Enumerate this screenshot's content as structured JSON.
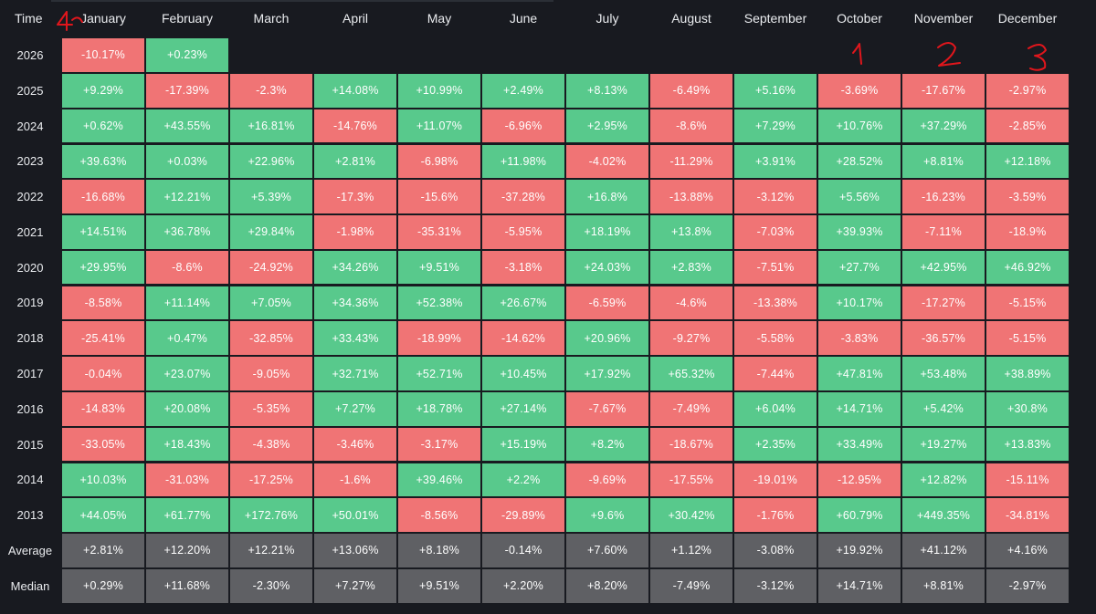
{
  "chart_data": {
    "type": "table",
    "corner_label": "Time",
    "months": [
      "January",
      "February",
      "March",
      "April",
      "May",
      "June",
      "July",
      "August",
      "September",
      "October",
      "November",
      "December"
    ],
    "rows": [
      {
        "year": "2026",
        "values": [
          "-10.17%",
          "+0.23%",
          "",
          "",
          "",
          "",
          "",
          "",
          "",
          "",
          "",
          ""
        ]
      },
      {
        "year": "2025",
        "values": [
          "+9.29%",
          "-17.39%",
          "-2.3%",
          "+14.08%",
          "+10.99%",
          "+2.49%",
          "+8.13%",
          "-6.49%",
          "+5.16%",
          "-3.69%",
          "-17.67%",
          "-2.97%"
        ]
      },
      {
        "year": "2024",
        "values": [
          "+0.62%",
          "+43.55%",
          "+16.81%",
          "-14.76%",
          "+11.07%",
          "-6.96%",
          "+2.95%",
          "-8.6%",
          "+7.29%",
          "+10.76%",
          "+37.29%",
          "-2.85%"
        ]
      },
      {
        "year": "2023",
        "values": [
          "+39.63%",
          "+0.03%",
          "+22.96%",
          "+2.81%",
          "-6.98%",
          "+11.98%",
          "-4.02%",
          "-11.29%",
          "+3.91%",
          "+28.52%",
          "+8.81%",
          "+12.18%"
        ]
      },
      {
        "year": "2022",
        "values": [
          "-16.68%",
          "+12.21%",
          "+5.39%",
          "-17.3%",
          "-15.6%",
          "-37.28%",
          "+16.8%",
          "-13.88%",
          "-3.12%",
          "+5.56%",
          "-16.23%",
          "-3.59%"
        ]
      },
      {
        "year": "2021",
        "values": [
          "+14.51%",
          "+36.78%",
          "+29.84%",
          "-1.98%",
          "-35.31%",
          "-5.95%",
          "+18.19%",
          "+13.8%",
          "-7.03%",
          "+39.93%",
          "-7.11%",
          "-18.9%"
        ]
      },
      {
        "year": "2020",
        "values": [
          "+29.95%",
          "-8.6%",
          "-24.92%",
          "+34.26%",
          "+9.51%",
          "-3.18%",
          "+24.03%",
          "+2.83%",
          "-7.51%",
          "+27.7%",
          "+42.95%",
          "+46.92%"
        ]
      },
      {
        "year": "2019",
        "values": [
          "-8.58%",
          "+11.14%",
          "+7.05%",
          "+34.36%",
          "+52.38%",
          "+26.67%",
          "-6.59%",
          "-4.6%",
          "-13.38%",
          "+10.17%",
          "-17.27%",
          "-5.15%"
        ]
      },
      {
        "year": "2018",
        "values": [
          "-25.41%",
          "+0.47%",
          "-32.85%",
          "+33.43%",
          "-18.99%",
          "-14.62%",
          "+20.96%",
          "-9.27%",
          "-5.58%",
          "-3.83%",
          "-36.57%",
          "-5.15%"
        ]
      },
      {
        "year": "2017",
        "values": [
          "-0.04%",
          "+23.07%",
          "-9.05%",
          "+32.71%",
          "+52.71%",
          "+10.45%",
          "+17.92%",
          "+65.32%",
          "-7.44%",
          "+47.81%",
          "+53.48%",
          "+38.89%"
        ]
      },
      {
        "year": "2016",
        "values": [
          "-14.83%",
          "+20.08%",
          "-5.35%",
          "+7.27%",
          "+18.78%",
          "+27.14%",
          "-7.67%",
          "-7.49%",
          "+6.04%",
          "+14.71%",
          "+5.42%",
          "+30.8%"
        ]
      },
      {
        "year": "2015",
        "values": [
          "-33.05%",
          "+18.43%",
          "-4.38%",
          "-3.46%",
          "-3.17%",
          "+15.19%",
          "+8.2%",
          "-18.67%",
          "+2.35%",
          "+33.49%",
          "+19.27%",
          "+13.83%"
        ]
      },
      {
        "year": "2014",
        "values": [
          "+10.03%",
          "-31.03%",
          "-17.25%",
          "-1.6%",
          "+39.46%",
          "+2.2%",
          "-9.69%",
          "-17.55%",
          "-19.01%",
          "-12.95%",
          "+12.82%",
          "-15.11%"
        ]
      },
      {
        "year": "2013",
        "values": [
          "+44.05%",
          "+61.77%",
          "+172.76%",
          "+50.01%",
          "-8.56%",
          "-29.89%",
          "+9.6%",
          "+30.42%",
          "-1.76%",
          "+60.79%",
          "+449.35%",
          "-34.81%"
        ]
      }
    ],
    "summary_rows": [
      {
        "label": "Average",
        "values": [
          "+2.81%",
          "+12.20%",
          "+12.21%",
          "+13.06%",
          "+8.18%",
          "-0.14%",
          "+7.60%",
          "+1.12%",
          "-3.08%",
          "+19.92%",
          "+41.12%",
          "+4.16%"
        ]
      },
      {
        "label": "Median",
        "values": [
          "+0.29%",
          "+11.68%",
          "-2.30%",
          "+7.27%",
          "+9.51%",
          "+2.20%",
          "+8.20%",
          "-7.49%",
          "-3.12%",
          "+14.71%",
          "+8.81%",
          "-2.97%"
        ]
      }
    ],
    "annotations": [
      {
        "text": "4",
        "column": "January"
      },
      {
        "text": "1",
        "column": "October"
      },
      {
        "text": "2",
        "column": "November"
      },
      {
        "text": "3",
        "column": "December"
      }
    ]
  },
  "colors": {
    "background": "#181a20",
    "positive": "#58c98c",
    "negative": "#f07475",
    "summary": "#5f6064",
    "annotation": "#e0161c"
  }
}
